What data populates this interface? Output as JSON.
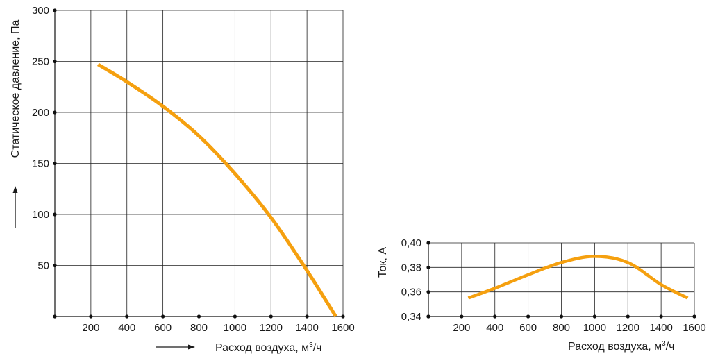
{
  "colors": {
    "curve": "#F5A00F",
    "grid": "#222222",
    "text": "#1a1a1a"
  },
  "chart_data": [
    {
      "type": "line",
      "xlabel_prefix": "Расход воздуха, м",
      "xlabel_sup": "3",
      "xlabel_suffix": "/ч",
      "ylabel": "Статическое давление, Па",
      "xlim": [
        0,
        1600
      ],
      "ylim": [
        0,
        300
      ],
      "x_ticks": [
        200,
        400,
        600,
        800,
        1000,
        1200,
        1400,
        1600
      ],
      "y_ticks": [
        50,
        100,
        150,
        200,
        250,
        300
      ],
      "y_tick_labels": [
        "50",
        "100",
        "150",
        "200",
        "250",
        "300"
      ],
      "grid": true,
      "series": [
        {
          "x": [
            240,
            400,
            600,
            800,
            1000,
            1200,
            1400,
            1560
          ],
          "y": [
            247,
            230,
            206,
            177,
            140,
            97,
            45,
            0
          ]
        }
      ]
    },
    {
      "type": "line",
      "xlabel_prefix": "Расход воздуха, м",
      "xlabel_sup": "3",
      "xlabel_suffix": "/ч",
      "ylabel": "Ток, А",
      "xlim": [
        0,
        1600
      ],
      "ylim": [
        0.34,
        0.4
      ],
      "x_ticks": [
        200,
        400,
        600,
        800,
        1000,
        1200,
        1400,
        1600
      ],
      "y_ticks": [
        0.34,
        0.36,
        0.38,
        0.4
      ],
      "y_tick_labels": [
        "0,34",
        "0,36",
        "0,38",
        "0,40"
      ],
      "grid": true,
      "series": [
        {
          "x": [
            240,
            400,
            600,
            800,
            1000,
            1200,
            1400,
            1560
          ],
          "y": [
            0.355,
            0.363,
            0.374,
            0.384,
            0.389,
            0.384,
            0.366,
            0.355
          ]
        }
      ]
    }
  ]
}
